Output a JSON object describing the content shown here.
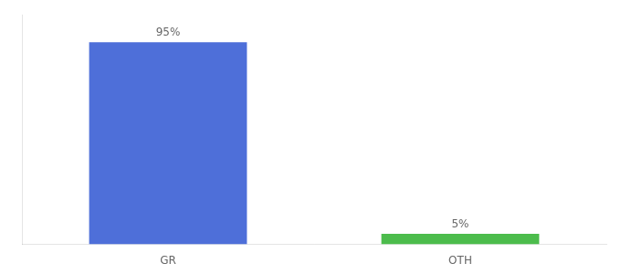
{
  "chart_data": {
    "type": "bar",
    "categories": [
      "GR",
      "OTH"
    ],
    "values": [
      95,
      5
    ],
    "value_labels": [
      "95%",
      "5%"
    ],
    "colors": [
      "#4e6fd9",
      "#4cbc4c"
    ],
    "ylim": [
      0,
      108
    ],
    "data_labels": true,
    "tick_labels": "x",
    "grid": false
  }
}
